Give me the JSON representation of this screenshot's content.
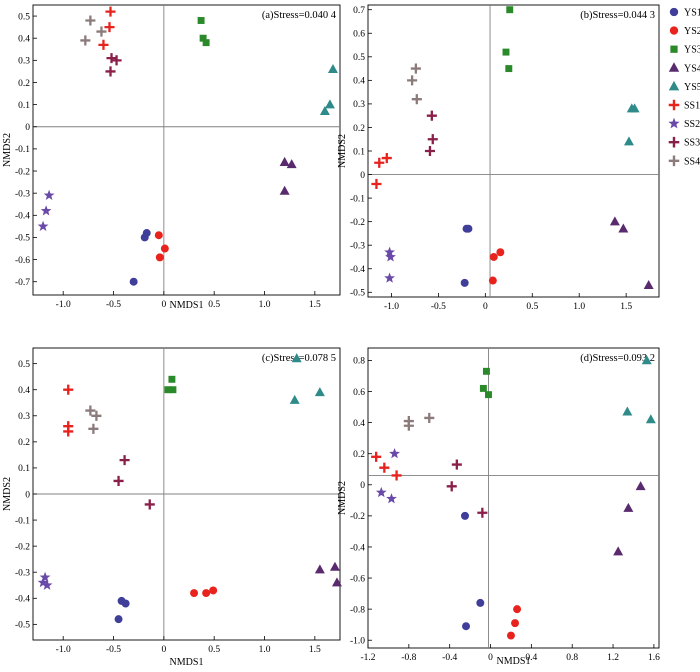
{
  "colors": {
    "YS1": "#3f3f9a",
    "YS2": "#e8231e",
    "YS3": "#2a8a2a",
    "YS4": "#5a2a6e",
    "YS5": "#2f8a8a",
    "SS1": "#e8231e",
    "SS2": "#6a4aa8",
    "SS3": "#8a1f4a",
    "SS4": "#8c7b7b"
  },
  "legend": [
    {
      "name": "YS1",
      "marker": "circle"
    },
    {
      "name": "YS2",
      "marker": "circle"
    },
    {
      "name": "YS3",
      "marker": "square"
    },
    {
      "name": "YS4",
      "marker": "triangle"
    },
    {
      "name": "YS5",
      "marker": "triangle"
    },
    {
      "name": "SS1",
      "marker": "plus"
    },
    {
      "name": "SS2",
      "marker": "star"
    },
    {
      "name": "SS3",
      "marker": "plus"
    },
    {
      "name": "SS4",
      "marker": "plus"
    }
  ],
  "chart_data": [
    {
      "type": "scatter",
      "title": "(a)Stress=0.040 4",
      "xlabel": "NMDS1",
      "ylabel": "NMDS2",
      "xlim": [
        -1.3,
        1.75
      ],
      "ylim": [
        -0.76,
        0.55
      ],
      "xticks": [
        -1,
        -0.5,
        0,
        0.5,
        1,
        1.5
      ],
      "xtick_labels": [
        "-1.0",
        "-0.5",
        "0",
        "0.5",
        "1.0",
        "1.5"
      ],
      "yticks": [
        -0.7,
        -0.6,
        -0.5,
        -0.4,
        -0.3,
        -0.2,
        -0.1,
        0,
        0.1,
        0.2,
        0.3,
        0.4,
        0.5
      ],
      "ytick_labels": [
        "-0.7",
        "-0.6",
        "-0.5",
        "-0.4",
        "-0.3",
        "-0.2",
        "-0.1",
        "0",
        "0.1",
        "0.2",
        "0.3",
        "0.4",
        "0.5"
      ],
      "ref_x": 0,
      "ref_y": 0,
      "series": [
        {
          "name": "YS1",
          "points": [
            [
              -0.3,
              -0.7
            ],
            [
              -0.19,
              -0.5
            ],
            [
              -0.17,
              -0.48
            ]
          ]
        },
        {
          "name": "YS2",
          "points": [
            [
              -0.05,
              -0.49
            ],
            [
              -0.04,
              -0.59
            ],
            [
              0.01,
              -0.55
            ]
          ]
        },
        {
          "name": "YS3",
          "points": [
            [
              0.37,
              0.48
            ],
            [
              0.39,
              0.4
            ],
            [
              0.42,
              0.38
            ]
          ]
        },
        {
          "name": "YS4",
          "points": [
            [
              1.2,
              -0.29
            ],
            [
              1.2,
              -0.16
            ],
            [
              1.27,
              -0.17
            ]
          ]
        },
        {
          "name": "YS5",
          "points": [
            [
              1.6,
              0.07
            ],
            [
              1.65,
              0.1
            ],
            [
              1.68,
              0.26
            ]
          ]
        },
        {
          "name": "SS1",
          "points": [
            [
              -0.6,
              0.37
            ],
            [
              -0.54,
              0.45
            ],
            [
              -0.53,
              0.52
            ]
          ]
        },
        {
          "name": "SS2",
          "points": [
            [
              -1.2,
              -0.45
            ],
            [
              -1.17,
              -0.38
            ],
            [
              -1.14,
              -0.31
            ]
          ]
        },
        {
          "name": "SS3",
          "points": [
            [
              -0.53,
              0.25
            ],
            [
              -0.52,
              0.31
            ],
            [
              -0.47,
              0.3
            ]
          ]
        },
        {
          "name": "SS4",
          "points": [
            [
              -0.78,
              0.39
            ],
            [
              -0.73,
              0.48
            ],
            [
              -0.62,
              0.43
            ]
          ]
        }
      ]
    },
    {
      "type": "scatter",
      "title": "(b)Stress=0.044 3",
      "xlabel": "",
      "ylabel": "NMDS2",
      "xlim": [
        -1.25,
        1.85
      ],
      "ylim": [
        -0.52,
        0.72
      ],
      "xticks": [
        -1,
        -0.5,
        0,
        0.5,
        1,
        1.5
      ],
      "xtick_labels": [
        "-1.0",
        "-0.5",
        "0",
        "0.5",
        "1.0",
        "1.5"
      ],
      "yticks": [
        -0.5,
        -0.4,
        -0.3,
        -0.2,
        -0.1,
        0,
        0.1,
        0.2,
        0.3,
        0.4,
        0.5,
        0.6,
        0.7
      ],
      "ytick_labels": [
        "-0.5",
        "-0.4",
        "-0.3",
        "-0.2",
        "-0.1",
        "0",
        "0.1",
        "0.2",
        "0.3",
        "0.4",
        "0.5",
        "0.6",
        "0.7"
      ],
      "ref_x": 0.05,
      "ref_y": 0,
      "series": [
        {
          "name": "YS1",
          "points": [
            [
              -0.22,
              -0.46
            ],
            [
              -0.2,
              -0.23
            ],
            [
              -0.18,
              -0.23
            ]
          ]
        },
        {
          "name": "YS2",
          "points": [
            [
              0.08,
              -0.45
            ],
            [
              0.09,
              -0.35
            ],
            [
              0.16,
              -0.33
            ]
          ]
        },
        {
          "name": "YS3",
          "points": [
            [
              0.22,
              0.52
            ],
            [
              0.25,
              0.45
            ],
            [
              0.26,
              0.7
            ]
          ]
        },
        {
          "name": "YS4",
          "points": [
            [
              1.38,
              -0.2
            ],
            [
              1.47,
              -0.23
            ],
            [
              1.74,
              -0.47
            ]
          ]
        },
        {
          "name": "YS5",
          "points": [
            [
              1.53,
              0.14
            ],
            [
              1.56,
              0.28
            ],
            [
              1.59,
              0.28
            ]
          ]
        },
        {
          "name": "SS1",
          "points": [
            [
              -1.16,
              -0.04
            ],
            [
              -1.13,
              0.05
            ],
            [
              -1.05,
              0.07
            ]
          ]
        },
        {
          "name": "SS2",
          "points": [
            [
              -1.02,
              -0.44
            ],
            [
              -1.02,
              -0.33
            ],
            [
              -1.01,
              -0.35
            ]
          ]
        },
        {
          "name": "SS3",
          "points": [
            [
              -0.59,
              0.1
            ],
            [
              -0.57,
              0.25
            ],
            [
              -0.56,
              0.15
            ]
          ]
        },
        {
          "name": "SS4",
          "points": [
            [
              -0.78,
              0.4
            ],
            [
              -0.74,
              0.45
            ],
            [
              -0.73,
              0.32
            ]
          ]
        }
      ]
    },
    {
      "type": "scatter",
      "title": "(c)Stress=0.078 5",
      "xlabel": "NMDS1",
      "ylabel": "NMDS2",
      "xlim": [
        -1.3,
        1.75
      ],
      "ylim": [
        -0.56,
        0.56
      ],
      "xticks": [
        -1,
        -0.5,
        0,
        0.5,
        1,
        1.5
      ],
      "xtick_labels": [
        "-1.0",
        "-0.5",
        "0",
        "0.5",
        "1.0",
        "1.5"
      ],
      "yticks": [
        -0.5,
        -0.4,
        -0.3,
        -0.2,
        -0.1,
        0,
        0.1,
        0.2,
        0.3,
        0.4,
        0.5
      ],
      "ytick_labels": [
        "-0.5",
        "-0.4",
        "-0.3",
        "-0.2",
        "-0.1",
        "0",
        "0.1",
        "0.2",
        "0.3",
        "0.4",
        "0.5"
      ],
      "ref_x": 0,
      "ref_y": 0,
      "series": [
        {
          "name": "YS1",
          "points": [
            [
              -0.45,
              -0.48
            ],
            [
              -0.42,
              -0.41
            ],
            [
              -0.38,
              -0.42
            ]
          ]
        },
        {
          "name": "YS2",
          "points": [
            [
              0.3,
              -0.38
            ],
            [
              0.42,
              -0.38
            ],
            [
              0.49,
              -0.37
            ]
          ]
        },
        {
          "name": "YS3",
          "points": [
            [
              0.04,
              0.4
            ],
            [
              0.08,
              0.44
            ],
            [
              0.09,
              0.4
            ]
          ]
        },
        {
          "name": "YS4",
          "points": [
            [
              1.55,
              -0.29
            ],
            [
              1.7,
              -0.28
            ],
            [
              1.72,
              -0.34
            ]
          ]
        },
        {
          "name": "YS5",
          "points": [
            [
              1.3,
              0.36
            ],
            [
              1.32,
              0.52
            ],
            [
              1.55,
              0.39
            ]
          ]
        },
        {
          "name": "SS1",
          "points": [
            [
              -0.95,
              0.24
            ],
            [
              -0.95,
              0.26
            ],
            [
              -0.95,
              0.4
            ]
          ]
        },
        {
          "name": "SS2",
          "points": [
            [
              -1.2,
              -0.34
            ],
            [
              -1.18,
              -0.32
            ],
            [
              -1.16,
              -0.35
            ]
          ]
        },
        {
          "name": "SS3",
          "points": [
            [
              -0.45,
              0.05
            ],
            [
              -0.39,
              0.13
            ],
            [
              -0.14,
              -0.04
            ]
          ]
        },
        {
          "name": "SS4",
          "points": [
            [
              -0.73,
              0.32
            ],
            [
              -0.7,
              0.25
            ],
            [
              -0.67,
              0.3
            ]
          ]
        }
      ]
    },
    {
      "type": "scatter",
      "title": "(d)Stress=0.093 2",
      "xlabel": "NMDS1",
      "ylabel": "NMDS2",
      "xlim": [
        -1.2,
        1.65
      ],
      "ylim": [
        -1.05,
        0.88
      ],
      "xticks": [
        -1.2,
        -0.8,
        -0.4,
        0,
        0.4,
        0.8,
        1.2,
        1.6
      ],
      "xtick_labels": [
        "-1.2",
        "-0.8",
        "-0.4",
        "0",
        "0.4",
        "0.8",
        "1.2",
        "1.6"
      ],
      "yticks": [
        -1.0,
        -0.8,
        -0.6,
        -0.4,
        -0.2,
        0,
        0.2,
        0.4,
        0.6,
        0.8
      ],
      "ytick_labels": [
        "-1.0",
        "-0.8",
        "-0.6",
        "-0.4",
        "-0.2",
        "0",
        "0.2",
        "0.4",
        "0.6",
        "0.8"
      ],
      "ref_x": -0.02,
      "ref_y": 0.06,
      "series": [
        {
          "name": "YS1",
          "points": [
            [
              -0.24,
              -0.91
            ],
            [
              -0.25,
              -0.2
            ],
            [
              -0.1,
              -0.76
            ]
          ]
        },
        {
          "name": "YS2",
          "points": [
            [
              0.2,
              -0.97
            ],
            [
              0.24,
              -0.89
            ],
            [
              0.26,
              -0.8
            ]
          ]
        },
        {
          "name": "YS3",
          "points": [
            [
              -0.07,
              0.62
            ],
            [
              -0.04,
              0.73
            ],
            [
              -0.02,
              0.58
            ]
          ]
        },
        {
          "name": "YS4",
          "points": [
            [
              1.25,
              -0.43
            ],
            [
              1.35,
              -0.15
            ],
            [
              1.47,
              -0.01
            ]
          ]
        },
        {
          "name": "YS5",
          "points": [
            [
              1.34,
              0.47
            ],
            [
              1.53,
              0.8
            ],
            [
              1.57,
              0.42
            ]
          ]
        },
        {
          "name": "SS1",
          "points": [
            [
              -1.12,
              0.18
            ],
            [
              -1.04,
              0.11
            ],
            [
              -0.92,
              0.06
            ]
          ]
        },
        {
          "name": "SS2",
          "points": [
            [
              -1.07,
              -0.05
            ],
            [
              -0.97,
              -0.09
            ],
            [
              -0.94,
              0.2
            ]
          ]
        },
        {
          "name": "SS3",
          "points": [
            [
              -0.38,
              -0.01
            ],
            [
              -0.33,
              0.13
            ],
            [
              -0.08,
              -0.18
            ]
          ]
        },
        {
          "name": "SS4",
          "points": [
            [
              -0.8,
              0.38
            ],
            [
              -0.8,
              0.41
            ],
            [
              -0.6,
              0.43
            ]
          ]
        }
      ]
    }
  ]
}
